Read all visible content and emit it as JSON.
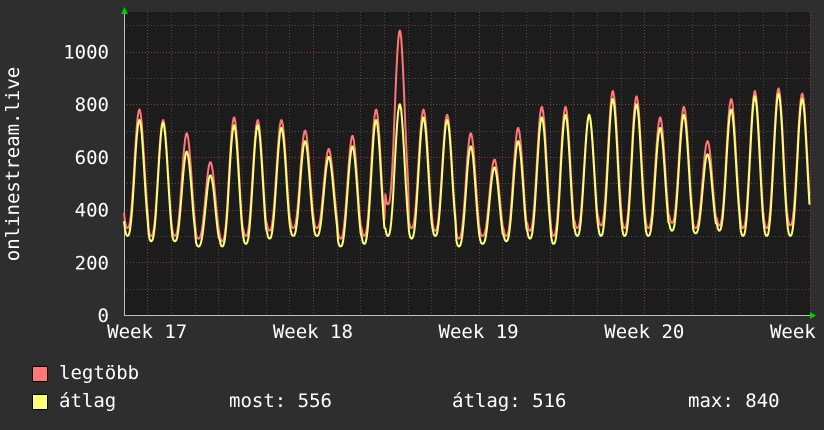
{
  "chart_data": {
    "type": "line",
    "ylabel": "onlinestream.live",
    "ylim": [
      0,
      1150
    ],
    "yticks": [
      0,
      200,
      400,
      600,
      800,
      1000
    ],
    "ytick_labels": [
      "0",
      "200",
      "400",
      "600",
      "800",
      "1000"
    ],
    "xticks": [
      {
        "label": "Week 17",
        "week": 17
      },
      {
        "label": "Week 18",
        "week": 18
      },
      {
        "label": "Week 19",
        "week": 19
      },
      {
        "label": "Week 20",
        "week": 20
      },
      {
        "label": "Week 21",
        "week": 21
      }
    ],
    "xlim": [
      16.86,
      21.0
    ],
    "grid": true,
    "series": [
      {
        "name": "legtöbb",
        "color": "#ff7777",
        "peaks": [
          780,
          740,
          690,
          580,
          750,
          740,
          740,
          700,
          630,
          680,
          780,
          1080,
          780,
          760,
          690,
          590,
          710,
          790,
          790,
          760,
          850,
          830,
          750,
          790,
          660,
          820,
          850,
          860,
          840,
          790
        ],
        "troughs": [
          330,
          300,
          300,
          290,
          280,
          300,
          320,
          330,
          330,
          290,
          300,
          420,
          330,
          320,
          290,
          300,
          300,
          320,
          300,
          330,
          340,
          330,
          330,
          350,
          330,
          340,
          330,
          330,
          340,
          340
        ]
      },
      {
        "name": "átlag",
        "color": "#ffff77",
        "peaks": [
          740,
          730,
          620,
          530,
          720,
          720,
          710,
          660,
          600,
          640,
          740,
          800,
          750,
          740,
          640,
          560,
          660,
          750,
          760,
          760,
          820,
          800,
          710,
          760,
          610,
          780,
          830,
          840,
          820,
          760
        ],
        "troughs": [
          300,
          280,
          280,
          260,
          260,
          270,
          290,
          300,
          300,
          260,
          270,
          300,
          290,
          300,
          260,
          270,
          280,
          290,
          270,
          300,
          300,
          300,
          300,
          320,
          310,
          320,
          300,
          300,
          300,
          300
        ]
      }
    ],
    "legend": {
      "entries": [
        {
          "label": "legtöbb",
          "color": "#ff7777"
        },
        {
          "label": "átlag",
          "color": "#ffff77"
        }
      ],
      "stats": {
        "most": "most: 556",
        "atlag": "átlag: 516",
        "max": "max: 840"
      }
    }
  }
}
